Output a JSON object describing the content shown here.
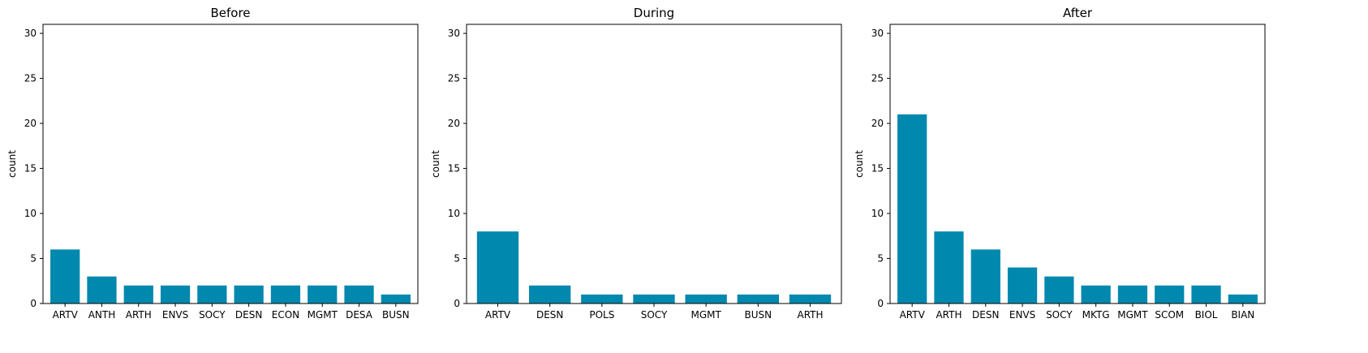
{
  "colors": {
    "bar": "#0088ae",
    "axis": "#000000",
    "background": "#ffffff"
  },
  "chart_data": [
    {
      "type": "bar",
      "title": "Before",
      "xlabel": "",
      "ylabel": "count",
      "ylim": [
        0,
        31
      ],
      "yticks": [
        0,
        5,
        10,
        15,
        20,
        25,
        30
      ],
      "grid": false,
      "categories": [
        "ARTV",
        "ANTH",
        "ARTH",
        "ENVS",
        "SOCY",
        "DESN",
        "ECON",
        "MGMT",
        "DESA",
        "BUSN"
      ],
      "values": [
        6,
        3,
        2,
        2,
        2,
        2,
        2,
        2,
        2,
        1
      ]
    },
    {
      "type": "bar",
      "title": "During",
      "xlabel": "",
      "ylabel": "count",
      "ylim": [
        0,
        31
      ],
      "yticks": [
        0,
        5,
        10,
        15,
        20,
        25,
        30
      ],
      "grid": false,
      "categories": [
        "ARTV",
        "DESN",
        "POLS",
        "SOCY",
        "MGMT",
        "BUSN",
        "ARTH"
      ],
      "values": [
        8,
        2,
        1,
        1,
        1,
        1,
        1
      ]
    },
    {
      "type": "bar",
      "title": "After",
      "xlabel": "",
      "ylabel": "count",
      "ylim": [
        0,
        31
      ],
      "yticks": [
        0,
        5,
        10,
        15,
        20,
        25,
        30
      ],
      "grid": false,
      "categories": [
        "ARTV",
        "ARTH",
        "DESN",
        "ENVS",
        "SOCY",
        "MKTG",
        "MGMT",
        "SCOM",
        "BIOL",
        "BIAN"
      ],
      "values": [
        21,
        8,
        6,
        4,
        3,
        2,
        2,
        2,
        2,
        1
      ]
    }
  ]
}
